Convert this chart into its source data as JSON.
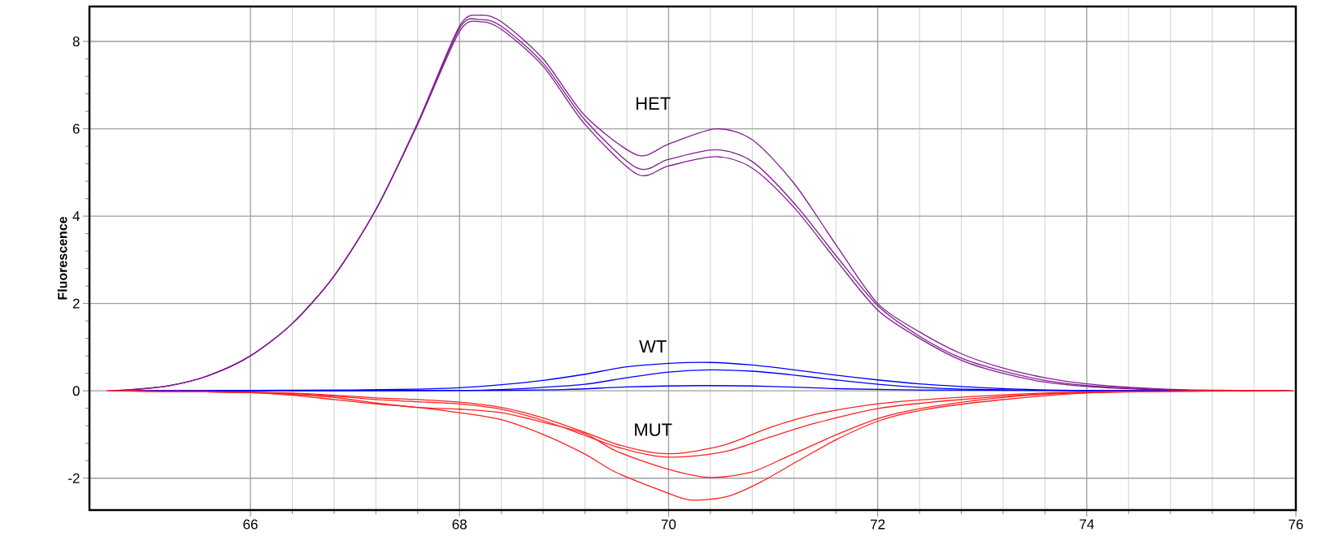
{
  "chart_data": {
    "type": "line",
    "ylabel": "Fluorescence",
    "xlim": [
      64.46,
      76
    ],
    "ylim": [
      -2.73,
      8.8
    ],
    "xticks": [
      66,
      68,
      70,
      72,
      74,
      76
    ],
    "yticks": [
      -2,
      0,
      2,
      4,
      6,
      8
    ],
    "grid": true,
    "annotations": [
      "HET",
      "WT",
      "MUT"
    ],
    "series": [
      {
        "color": "#80208f",
        "x": [
          64.66,
          65.2,
          65.6,
          66,
          66.4,
          66.8,
          67.2,
          67.6,
          68,
          68.2,
          68.4,
          68.8,
          69.2,
          69.7,
          70,
          70.45,
          70.8,
          71.2,
          71.6,
          72,
          72.4,
          72.8,
          73.2,
          73.6,
          74,
          74.5,
          75,
          75.86
        ],
        "values": [
          0,
          0.11,
          0.35,
          0.8,
          1.54,
          2.63,
          4.15,
          6.1,
          8.23,
          8.45,
          8.28,
          7.43,
          6.1,
          4.96,
          5.15,
          5.36,
          5.1,
          4.2,
          3.0,
          1.85,
          1.2,
          0.7,
          0.4,
          0.2,
          0.1,
          0.04,
          0.01,
          0
        ]
      },
      {
        "color": "#80208f",
        "x": [
          64.7,
          65.2,
          65.6,
          66,
          66.4,
          66.8,
          67.2,
          67.6,
          68,
          68.2,
          68.4,
          68.8,
          69.2,
          69.7,
          70,
          70.45,
          70.8,
          71.2,
          71.6,
          72,
          72.4,
          72.8,
          73.2,
          73.6,
          74,
          74.5,
          75,
          75.9
        ],
        "values": [
          0,
          0.11,
          0.35,
          0.8,
          1.54,
          2.63,
          4.15,
          6.12,
          8.3,
          8.5,
          8.35,
          7.5,
          6.2,
          5.1,
          5.3,
          5.52,
          5.25,
          4.3,
          3.1,
          1.95,
          1.25,
          0.75,
          0.45,
          0.24,
          0.12,
          0.05,
          0.01,
          0
        ]
      },
      {
        "color": "#80208f",
        "x": [
          64.74,
          65.2,
          65.6,
          66,
          66.4,
          66.8,
          67.2,
          67.6,
          68,
          68.2,
          68.4,
          68.8,
          69.2,
          69.7,
          70,
          70.45,
          70.8,
          71.2,
          71.6,
          72,
          72.4,
          72.8,
          73.2,
          73.6,
          74,
          74.5,
          75,
          75.94
        ],
        "values": [
          0,
          0.11,
          0.35,
          0.8,
          1.54,
          2.63,
          4.15,
          6.14,
          8.35,
          8.6,
          8.45,
          7.6,
          6.3,
          5.4,
          5.65,
          6.0,
          5.75,
          4.75,
          3.35,
          2.0,
          1.35,
          0.85,
          0.52,
          0.3,
          0.16,
          0.07,
          0.02,
          0
        ]
      },
      {
        "color": "#0000ff",
        "x": [
          64.68,
          66,
          67,
          67.6,
          68,
          68.4,
          68.8,
          69.2,
          69.6,
          70,
          70.4,
          70.8,
          71.2,
          71.6,
          72,
          72.4,
          72.8,
          73.2,
          74,
          75.9
        ],
        "values": [
          0,
          0.01,
          0.02,
          0.04,
          0.07,
          0.14,
          0.24,
          0.38,
          0.55,
          0.63,
          0.65,
          0.59,
          0.48,
          0.36,
          0.25,
          0.16,
          0.1,
          0.05,
          0.01,
          0
        ]
      },
      {
        "color": "#0000ff",
        "x": [
          64.72,
          67,
          68,
          68.4,
          68.8,
          69.2,
          69.6,
          70,
          70.4,
          70.8,
          71.2,
          71.6,
          72,
          72.4,
          72.8,
          73.6,
          75.88
        ],
        "values": [
          0,
          0,
          0.01,
          0.03,
          0.08,
          0.15,
          0.3,
          0.43,
          0.48,
          0.45,
          0.36,
          0.25,
          0.15,
          0.08,
          0.04,
          0.01,
          0
        ]
      },
      {
        "color": "#0000ff",
        "x": [
          64.76,
          68,
          69,
          69.6,
          70.3,
          71,
          71.6,
          72.4,
          73.5,
          75.92
        ],
        "values": [
          0,
          0.01,
          0.03,
          0.09,
          0.12,
          0.1,
          0.05,
          0.02,
          0.01,
          0
        ]
      },
      {
        "color": "#ff2020",
        "x": [
          64.64,
          65.5,
          66,
          66.4,
          66.8,
          67.2,
          67.6,
          68,
          68.4,
          68.8,
          69.2,
          69.5,
          69.87,
          70.15,
          70.56,
          70.97,
          71.42,
          72.02,
          72.7,
          73.6,
          74.5,
          75.84
        ],
        "values": [
          0,
          -0.02,
          -0.03,
          -0.05,
          -0.1,
          -0.16,
          -0.2,
          -0.26,
          -0.38,
          -0.62,
          -0.95,
          -1.22,
          -1.42,
          -1.42,
          -1.22,
          -0.84,
          -0.53,
          -0.29,
          -0.16,
          -0.05,
          -0.01,
          0
        ]
      },
      {
        "color": "#ff2020",
        "x": [
          64.78,
          65.5,
          66,
          66.4,
          66.8,
          67.2,
          67.6,
          68,
          68.4,
          68.8,
          69.2,
          69.5,
          69.87,
          70.15,
          70.56,
          70.97,
          71.42,
          72.02,
          72.7,
          73.6,
          74.5,
          75.96
        ],
        "values": [
          0,
          -0.02,
          -0.03,
          -0.06,
          -0.12,
          -0.2,
          -0.25,
          -0.3,
          -0.42,
          -0.68,
          -1.02,
          -1.28,
          -1.49,
          -1.51,
          -1.38,
          -1.06,
          -0.73,
          -0.4,
          -0.22,
          -0.07,
          -0.02,
          0
        ]
      },
      {
        "color": "#ff2020",
        "x": [
          64.62,
          65.5,
          66,
          66.4,
          66.8,
          67.2,
          67.6,
          68,
          68.4,
          68.8,
          69.2,
          69.5,
          69.96,
          70.37,
          70.78,
          71.15,
          71.61,
          72.02,
          72.47,
          73.16,
          74,
          75,
          75.82
        ],
        "values": [
          0,
          -0.02,
          -0.04,
          -0.08,
          -0.15,
          -0.28,
          -0.38,
          -0.42,
          -0.5,
          -0.72,
          -0.98,
          -1.38,
          -1.77,
          -1.98,
          -1.87,
          -1.49,
          -1.0,
          -0.62,
          -0.38,
          -0.16,
          -0.03,
          0,
          0
        ]
      },
      {
        "color": "#ff2020",
        "x": [
          64.8,
          65.5,
          66,
          66.4,
          66.8,
          67.2,
          67.6,
          68,
          68.4,
          68.8,
          69.2,
          69.5,
          69.96,
          70.21,
          70.56,
          70.88,
          71.24,
          71.61,
          72.02,
          72.47,
          73.16,
          74,
          75,
          75.98
        ],
        "values": [
          0,
          -0.02,
          -0.04,
          -0.1,
          -0.2,
          -0.3,
          -0.38,
          -0.5,
          -0.66,
          -1.0,
          -1.45,
          -1.87,
          -2.31,
          -2.5,
          -2.42,
          -2.09,
          -1.6,
          -1.11,
          -0.68,
          -0.42,
          -0.21,
          -0.05,
          0,
          0
        ]
      }
    ]
  }
}
